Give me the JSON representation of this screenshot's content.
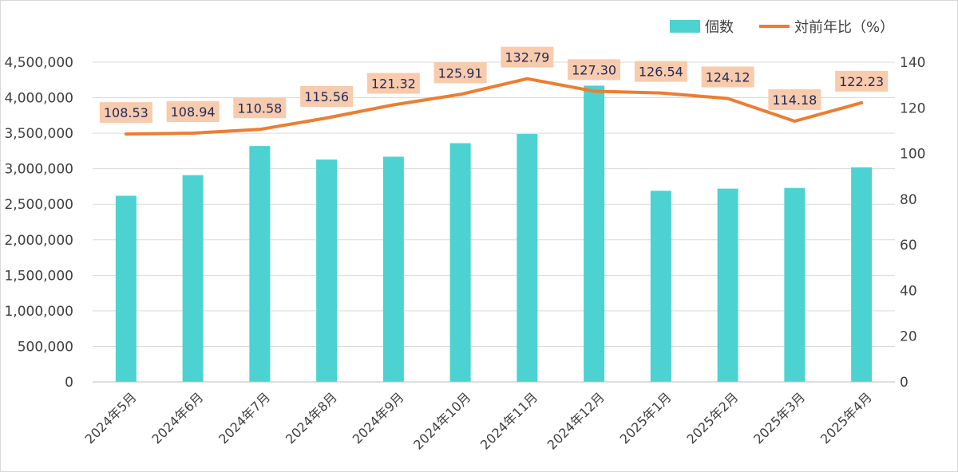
{
  "chart_data": {
    "type": "bar",
    "categories": [
      "2024年5月",
      "2024年6月",
      "2024年7月",
      "2024年8月",
      "2024年9月",
      "2024年10月",
      "2024年11月",
      "2024年12月",
      "2025年1月",
      "2025年2月",
      "2025年3月",
      "2025年4月"
    ],
    "series": [
      {
        "name": "個数",
        "type": "bar",
        "axis": "left",
        "color": "#4dd2d2",
        "values": [
          2620000,
          2910000,
          3320000,
          3130000,
          3170000,
          3360000,
          3490000,
          4170000,
          2690000,
          2720000,
          2730000,
          3020000
        ]
      },
      {
        "name": "対前年比（%）",
        "type": "line",
        "axis": "right",
        "color": "#ed7d31",
        "values": [
          108.53,
          108.94,
          110.58,
          115.56,
          121.32,
          125.91,
          132.79,
          127.3,
          126.54,
          124.12,
          114.18,
          122.23
        ],
        "data_labels": [
          "108.53",
          "108.94",
          "110.58",
          "115.56",
          "121.32",
          "125.91",
          "132.79",
          "127.30",
          "126.54",
          "124.12",
          "114.18",
          "122.23"
        ],
        "label_fill": "#f8cbad"
      }
    ],
    "y_left": {
      "ylim": [
        0,
        4500000
      ],
      "ticks": [
        0,
        500000,
        1000000,
        1500000,
        2000000,
        2500000,
        3000000,
        3500000,
        4000000,
        4500000
      ],
      "tick_labels": [
        "0",
        "500,000",
        "1,000,000",
        "1,500,000",
        "2,000,000",
        "2,500,000",
        "3,000,000",
        "3,500,000",
        "4,000,000",
        "4,500,000"
      ]
    },
    "y_right": {
      "ylim": [
        0,
        140
      ],
      "ticks": [
        0,
        20,
        40,
        60,
        80,
        100,
        120,
        140
      ],
      "tick_labels": [
        "0",
        "20",
        "40",
        "60",
        "80",
        "100",
        "120",
        "140"
      ]
    },
    "grid": true,
    "legend_position": "top-right",
    "gridline_color": "#d9d9d9"
  }
}
